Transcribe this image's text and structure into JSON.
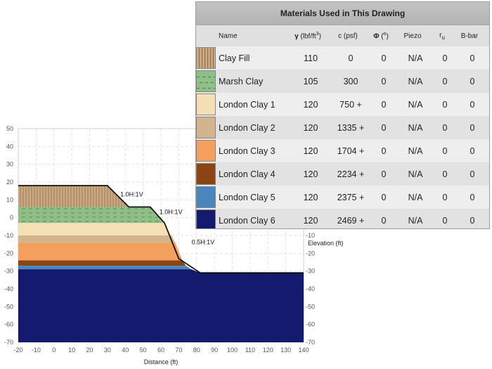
{
  "chart_data": {
    "type": "area",
    "xlabel": "Distance (ft)",
    "ylabel": "Elevation (ft)",
    "xlim": [
      -20,
      140
    ],
    "ylim": [
      -70,
      50
    ],
    "x_ticks": [
      -20,
      -10,
      0,
      10,
      20,
      30,
      40,
      50,
      60,
      70,
      80,
      90,
      100,
      110,
      120,
      130,
      140
    ],
    "y_ticks": [
      50,
      40,
      30,
      20,
      10,
      0,
      -10,
      -20,
      -30,
      -40,
      -50,
      -60,
      -70
    ],
    "grid": true,
    "surface_points": [
      [
        -20,
        18
      ],
      [
        30,
        18
      ],
      [
        42,
        6
      ],
      [
        54,
        6
      ],
      [
        62,
        -3
      ],
      [
        70,
        -23
      ],
      [
        82,
        -31
      ],
      [
        140,
        -31
      ]
    ],
    "layers": [
      {
        "material": "Clay Fill",
        "color": "#c9a882",
        "polygon": [
          [
            -20,
            18
          ],
          [
            30,
            18
          ],
          [
            42,
            6
          ],
          [
            -20,
            6
          ]
        ]
      },
      {
        "material": "Marsh Clay",
        "color": "#8fbf86",
        "polygon": [
          [
            -20,
            6
          ],
          [
            54,
            6
          ],
          [
            62,
            -3
          ],
          [
            -20,
            -3
          ]
        ]
      },
      {
        "material": "London Clay 1",
        "color": "#f5dfb4",
        "polygon": [
          [
            -20,
            -3
          ],
          [
            62,
            -3
          ],
          [
            66,
            -10
          ],
          [
            -20,
            -10
          ]
        ]
      },
      {
        "material": "London Clay 2",
        "color": "#d2b48f",
        "polygon": [
          [
            -20,
            -10
          ],
          [
            66,
            -10
          ],
          [
            68,
            -14
          ],
          [
            -20,
            -14
          ]
        ]
      },
      {
        "material": "London Clay 3",
        "color": "#f2a05c",
        "polygon": [
          [
            -20,
            -14
          ],
          [
            68,
            -14
          ],
          [
            72,
            -24
          ],
          [
            -20,
            -24
          ]
        ]
      },
      {
        "material": "London Clay 4",
        "color": "#8b4513",
        "polygon": [
          [
            -20,
            -24
          ],
          [
            72,
            -24
          ],
          [
            74,
            -27
          ],
          [
            -20,
            -27
          ]
        ]
      },
      {
        "material": "London Clay 5",
        "color": "#4a86bd",
        "polygon": [
          [
            -20,
            -27
          ],
          [
            74,
            -27
          ],
          [
            77,
            -29
          ],
          [
            -20,
            -29
          ]
        ]
      },
      {
        "material": "London Clay 6",
        "color": "#141a6b",
        "polygon": [
          [
            -20,
            -29
          ],
          [
            77,
            -29
          ],
          [
            82,
            -31
          ],
          [
            140,
            -31
          ],
          [
            140,
            -70
          ],
          [
            -20,
            -70
          ]
        ]
      }
    ],
    "annotations": [
      {
        "text": "1.0H:1V",
        "x": 36,
        "y": 12
      },
      {
        "text": "1.0H:1V",
        "x": 58,
        "y": 2
      },
      {
        "text": "0.5H:1V",
        "x": 76,
        "y": -15
      }
    ]
  },
  "materials_table": {
    "title": "Materials Used in This Drawing",
    "columns": [
      "Name",
      "γ (lbf/ft³)",
      "c (psf)",
      "Φ (º)",
      "Piezo",
      "ru",
      "B-bar"
    ],
    "column_header": {
      "name": "Name",
      "gamma_prefix": "γ",
      "gamma_unit": "(lbf/ft",
      "gamma_sup": "3",
      "gamma_close": ")",
      "c": "c (psf)",
      "phi_prefix": "Φ",
      "phi_unit": "(",
      "phi_sup": "o",
      "phi_close": ")",
      "piezo": "Piezo",
      "ru_main": "r",
      "ru_sub": "u",
      "bbar": "B-bar"
    },
    "rows": [
      {
        "name": "Clay Fill",
        "gamma": "110",
        "c": "0",
        "phi": "0",
        "piezo": "N/A",
        "ru": "0",
        "bbar": "0",
        "swatch_color": "#c9a882",
        "pattern": "vertical-lines"
      },
      {
        "name": "Marsh Clay",
        "gamma": "105",
        "c": "300",
        "phi": "0",
        "piezo": "N/A",
        "ru": "0",
        "bbar": "0",
        "swatch_color": "#8fbf86",
        "pattern": "dashes"
      },
      {
        "name": "London Clay 1",
        "gamma": "120",
        "c": "750 +",
        "phi": "0",
        "piezo": "N/A",
        "ru": "0",
        "bbar": "0",
        "swatch_color": "#f5dfb4",
        "pattern": "solid"
      },
      {
        "name": "London Clay 2",
        "gamma": "120",
        "c": "1335 +",
        "phi": "0",
        "piezo": "N/A",
        "ru": "0",
        "bbar": "0",
        "swatch_color": "#d2b48f",
        "pattern": "solid"
      },
      {
        "name": "London Clay 3",
        "gamma": "120",
        "c": "1704 +",
        "phi": "0",
        "piezo": "N/A",
        "ru": "0",
        "bbar": "0",
        "swatch_color": "#f2a05c",
        "pattern": "solid"
      },
      {
        "name": "London Clay 4",
        "gamma": "120",
        "c": "2234 +",
        "phi": "0",
        "piezo": "N/A",
        "ru": "0",
        "bbar": "0",
        "swatch_color": "#8b4513",
        "pattern": "solid"
      },
      {
        "name": "London Clay 5",
        "gamma": "120",
        "c": "2375 +",
        "phi": "0",
        "piezo": "N/A",
        "ru": "0",
        "bbar": "0",
        "swatch_color": "#4a86bd",
        "pattern": "solid"
      },
      {
        "name": "London Clay 6",
        "gamma": "120",
        "c": "2469 +",
        "phi": "0",
        "piezo": "N/A",
        "ru": "0",
        "bbar": "0",
        "swatch_color": "#141a6b",
        "pattern": "solid"
      }
    ],
    "chevron_icon": "chevron-right-icon"
  }
}
